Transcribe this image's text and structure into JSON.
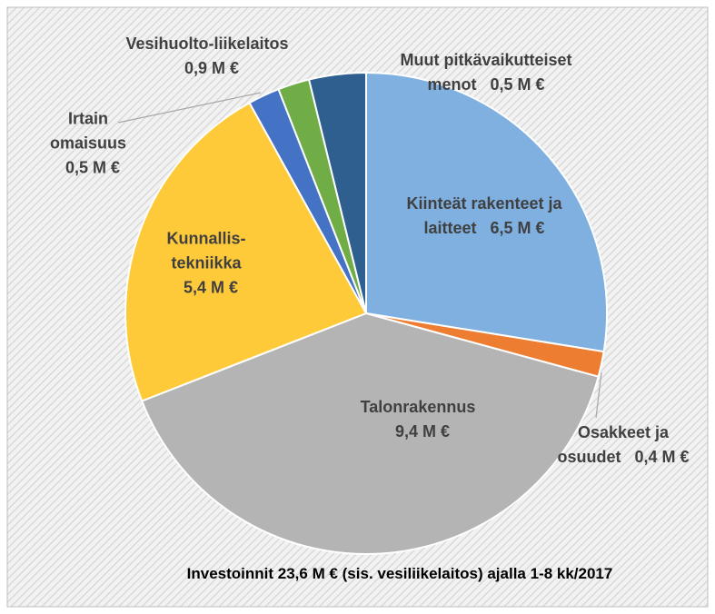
{
  "chart_data": {
    "type": "pie",
    "title": "Investoinnit 23,6 M € (sis. vesiliikelaitos) ajalla 1-8 kk/2017",
    "categories": [
      "Kiinteät rakenteet ja laitteet",
      "Osakkeet ja osuudet",
      "Talonrakennus",
      "Kunnallis-tekniikka",
      "Irtain omaisuus",
      "Muut pitkävaikutteiset menot",
      "Vesihuolto-liikelaitos"
    ],
    "values": [
      6.5,
      0.4,
      9.4,
      5.4,
      0.5,
      0.5,
      0.9
    ],
    "value_labels": [
      "6,5 M €",
      "0,4 M €",
      "9,4 M €",
      "5,4 M €",
      "0,5 M €",
      "0,5 M €",
      "0,9 M €"
    ],
    "colors": [
      "#7fb0e0",
      "#ed7d31",
      "#b4b4b4",
      "#ffca3a",
      "#4472c4",
      "#70ad47",
      "#2e5f8f"
    ]
  }
}
